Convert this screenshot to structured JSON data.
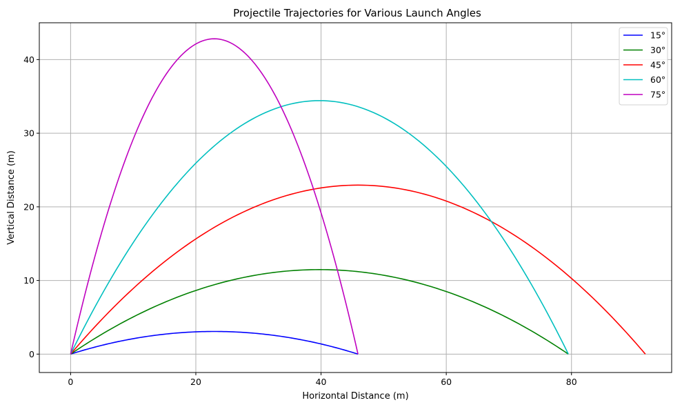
{
  "chart_data": {
    "type": "line",
    "title": "Projectile Trajectories for Various Launch Angles",
    "xlabel": "Horizontal Distance (m)",
    "ylabel": "Vertical Distance (m)",
    "xlim": [
      -5,
      96
    ],
    "ylim": [
      -2.5,
      45
    ],
    "xticks": [
      0,
      20,
      40,
      60,
      80
    ],
    "yticks": [
      0,
      10,
      20,
      30,
      40
    ],
    "grid": true,
    "legend_position": "top-right",
    "series": [
      {
        "name": "15°",
        "angle_deg": 15,
        "color": "#0000ff",
        "range_m": 45.9,
        "max_height_m": 3.07
      },
      {
        "name": "30°",
        "angle_deg": 30,
        "color": "#008000",
        "range_m": 79.5,
        "max_height_m": 11.47
      },
      {
        "name": "45°",
        "angle_deg": 45,
        "color": "#ff0000",
        "range_m": 91.8,
        "max_height_m": 22.95
      },
      {
        "name": "60°",
        "angle_deg": 60,
        "color": "#00bfbf",
        "range_m": 79.5,
        "max_height_m": 34.42
      },
      {
        "name": "75°",
        "angle_deg": 75,
        "color": "#bf00bf",
        "range_m": 45.9,
        "max_height_m": 42.82
      }
    ]
  }
}
